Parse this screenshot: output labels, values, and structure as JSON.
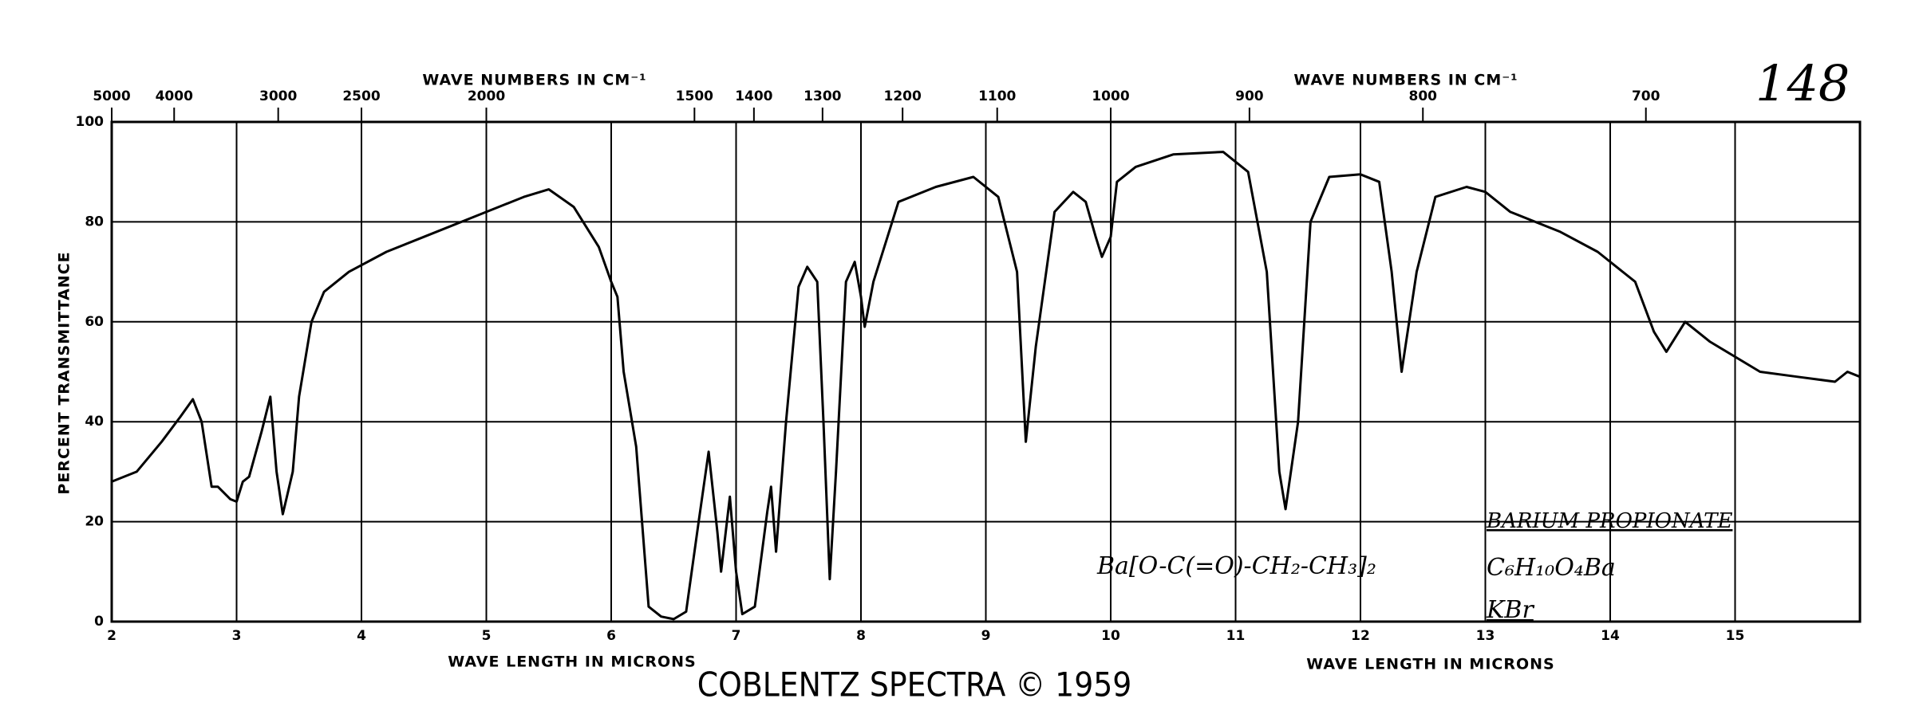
{
  "chart_data": {
    "type": "line",
    "title": "COBLENTZ SPECTRA © 1959",
    "x_label": "WAVE LENGTH IN MICRONS",
    "y_label": "PERCENT TRANSMITTANCE",
    "top_axis_label": "WAVE NUMBERS IN CM⁻¹",
    "top_ticks": [
      5000,
      4000,
      3000,
      2500,
      2000,
      1500,
      1400,
      1300,
      1200,
      1100,
      1000,
      900,
      800,
      700
    ],
    "annotations": [
      "148",
      "BARIUM PROPIONATE",
      "C₆H₁₀O₄Ba",
      "KBr",
      "Ba[O-C(=O)-CH₂-CH₃]₂"
    ],
    "color": "#000000",
    "grid": true,
    "xlim": [
      2,
      16
    ],
    "ylim": [
      0,
      100
    ],
    "xticks": [
      2,
      3,
      4,
      5,
      6,
      7,
      8,
      9,
      10,
      11,
      12,
      13,
      14,
      15
    ],
    "yticks": [
      0,
      20,
      40,
      60,
      80,
      100
    ],
    "x": [
      2.0,
      2.2,
      2.4,
      2.55,
      2.65,
      2.72,
      2.8,
      2.85,
      2.95,
      3.0,
      3.05,
      3.1,
      3.2,
      3.27,
      3.32,
      3.37,
      3.45,
      3.5,
      3.6,
      3.7,
      3.9,
      4.2,
      4.5,
      5.0,
      5.3,
      5.5,
      5.7,
      5.9,
      6.0,
      6.05,
      6.1,
      6.2,
      6.3,
      6.4,
      6.5,
      6.6,
      6.7,
      6.78,
      6.85,
      6.88,
      6.95,
      7.0,
      7.05,
      7.15,
      7.25,
      7.28,
      7.32,
      7.4,
      7.5,
      7.57,
      7.65,
      7.7,
      7.75,
      7.8,
      7.88,
      7.95,
      8.0,
      8.03,
      8.1,
      8.3,
      8.6,
      8.9,
      9.1,
      9.25,
      9.32,
      9.4,
      9.55,
      9.7,
      9.8,
      9.88,
      9.93,
      10.0,
      10.05,
      10.2,
      10.5,
      10.9,
      11.1,
      11.25,
      11.35,
      11.4,
      11.5,
      11.6,
      11.75,
      12.0,
      12.15,
      12.25,
      12.33,
      12.45,
      12.6,
      12.85,
      13.0,
      13.2,
      13.6,
      13.9,
      14.2,
      14.35,
      14.45,
      14.6,
      14.8,
      15.2,
      15.5,
      15.8,
      15.9,
      16.0
    ],
    "values": [
      28,
      30,
      36,
      41,
      44.5,
      40,
      27,
      27,
      24.5,
      24,
      28,
      29,
      38,
      45,
      30,
      21.5,
      30,
      45,
      60,
      66,
      70,
      74,
      77,
      82,
      85,
      86.5,
      83,
      75,
      68,
      65,
      50,
      35,
      3,
      1,
      0.5,
      2,
      20,
      34,
      18,
      10,
      25,
      10,
      1.5,
      3,
      22,
      27,
      14,
      40,
      67,
      71,
      68,
      40,
      8.5,
      30,
      68,
      72,
      65,
      59,
      68,
      84,
      87,
      89,
      85,
      70,
      36,
      55,
      82,
      86,
      84,
      77,
      73,
      77,
      88,
      91,
      93.5,
      94,
      90,
      70,
      30,
      22.5,
      40,
      80,
      89,
      89.5,
      88,
      70,
      50,
      70,
      85,
      87,
      86,
      82,
      78,
      74,
      68,
      58,
      54,
      60,
      56,
      50,
      49,
      48,
      50,
      49
    ]
  }
}
